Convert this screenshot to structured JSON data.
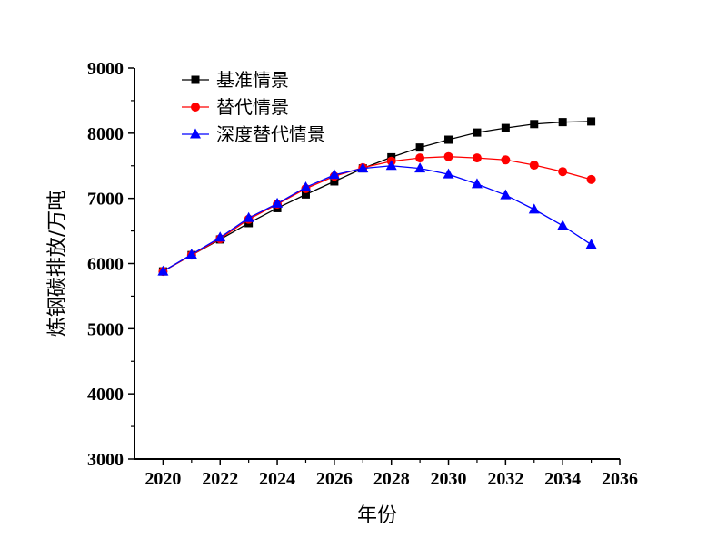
{
  "chart_data": {
    "type": "line",
    "xlabel": "年份",
    "ylabel": "炼钢碳排放/万吨",
    "xlim": [
      2019,
      2036
    ],
    "ylim": [
      3000,
      9000
    ],
    "xticks": [
      2020,
      2022,
      2024,
      2026,
      2028,
      2030,
      2032,
      2034,
      2036
    ],
    "yticks": [
      3000,
      4000,
      5000,
      6000,
      7000,
      8000,
      9000
    ],
    "legend_position": "top-left",
    "grid": false,
    "x": [
      2020,
      2021,
      2022,
      2023,
      2024,
      2025,
      2026,
      2027,
      2028,
      2029,
      2030,
      2031,
      2032,
      2033,
      2034,
      2035
    ],
    "series": [
      {
        "name": "基准情景",
        "color": "#000000",
        "marker": "square",
        "values": [
          5880,
          6130,
          6370,
          6620,
          6850,
          7060,
          7260,
          7460,
          7630,
          7780,
          7900,
          8010,
          8080,
          8140,
          8170,
          8180
        ]
      },
      {
        "name": "替代情景",
        "color": "#ff0000",
        "marker": "circle",
        "values": [
          5880,
          6130,
          6380,
          6680,
          6910,
          7150,
          7340,
          7470,
          7570,
          7620,
          7640,
          7620,
          7590,
          7510,
          7410,
          7290
        ]
      },
      {
        "name": "深度替代情景",
        "color": "#0000ff",
        "marker": "triangle",
        "values": [
          5880,
          6140,
          6400,
          6700,
          6920,
          7170,
          7360,
          7460,
          7500,
          7460,
          7370,
          7220,
          7050,
          6830,
          6580,
          6290
        ]
      }
    ]
  }
}
